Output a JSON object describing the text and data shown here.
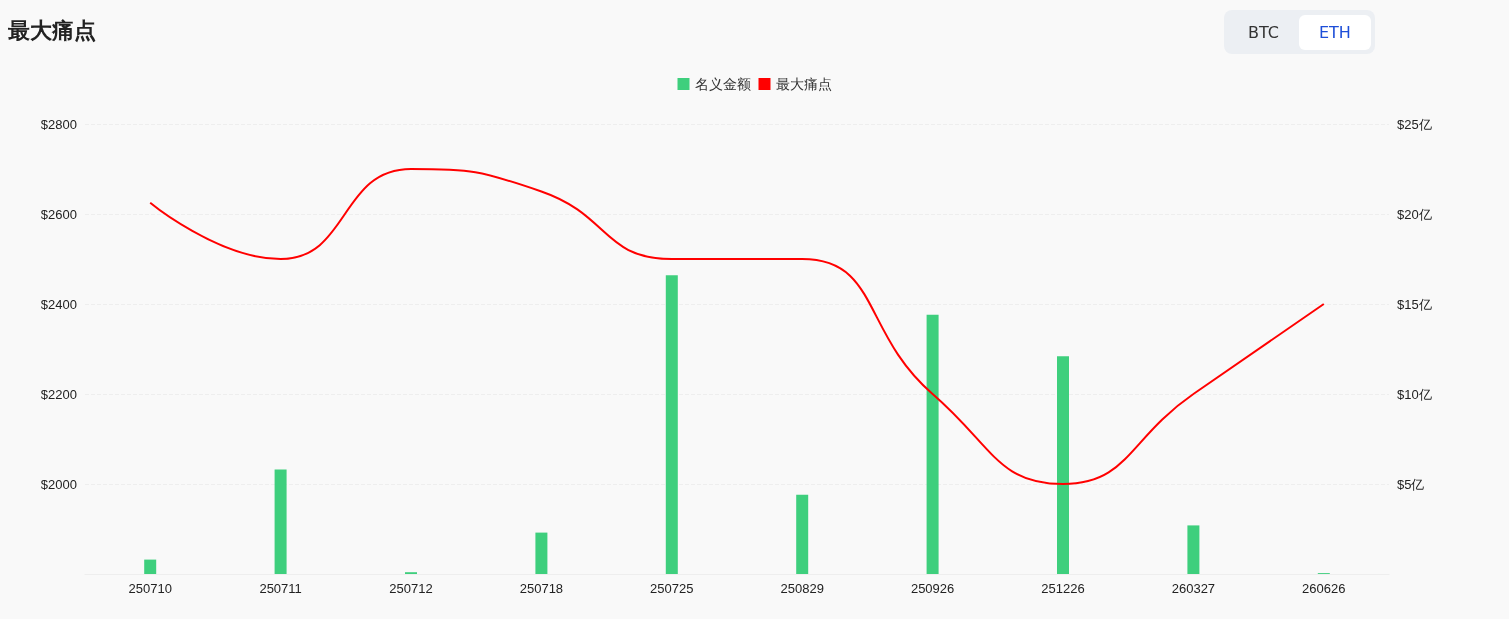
{
  "chart_data": {
    "type": "bar",
    "title": "最大痛点",
    "annotations": [
      "BTC",
      "ETH"
    ],
    "categories": [
      "250710",
      "250711",
      "250712",
      "250718",
      "250725",
      "250829",
      "250926",
      "251226",
      "260327",
      "260626"
    ],
    "series": [
      {
        "name": "名义金额",
        "color": "#3ecf7d",
        "axis": "y2",
        "values": [
          0.8,
          5.8,
          0.1,
          2.3,
          16.6,
          4.4,
          14.4,
          12.1,
          2.7,
          0.05
        ]
      },
      {
        "name": "最大痛点",
        "type": "line",
        "color": "#ff0000",
        "values": [
          2625,
          2500,
          2700,
          2650,
          2500,
          2500,
          2200,
          2000,
          2200,
          2400
        ]
      }
    ],
    "ylim": [
      1800,
      2800
    ],
    "yticks": [
      {
        "value": 2000,
        "label": "$2000"
      },
      {
        "value": 2200,
        "label": "$2200"
      },
      {
        "value": 2400,
        "label": "$2400"
      },
      {
        "value": 2600,
        "label": "$2600"
      },
      {
        "value": 2800,
        "label": "$2800"
      }
    ],
    "y2lim": [
      0,
      25
    ],
    "y2ticks": [
      {
        "value": 5,
        "label": "$5亿"
      },
      {
        "value": 10,
        "label": "$10亿"
      },
      {
        "value": 15,
        "label": "$15亿"
      },
      {
        "value": 20,
        "label": "$20亿"
      },
      {
        "value": 25,
        "label": "$25亿"
      }
    ],
    "grid": "y",
    "legend": "top",
    "marker": "none",
    "line_style": "solid"
  }
}
